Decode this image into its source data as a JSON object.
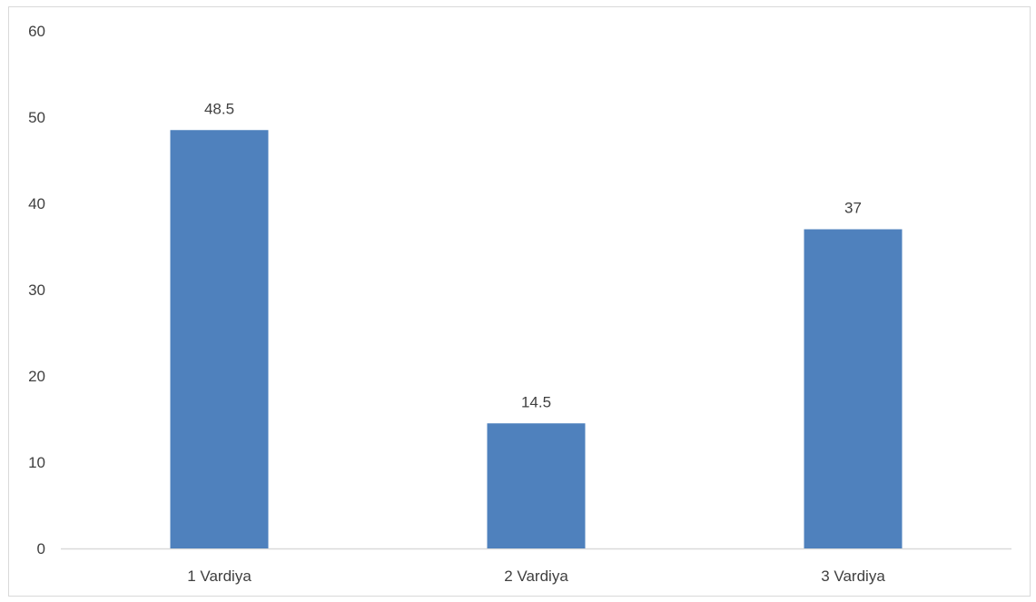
{
  "chart_data": {
    "type": "bar",
    "categories": [
      "1 Vardiya",
      "2 Vardiya",
      "3 Vardiya"
    ],
    "values": [
      48.5,
      14.5,
      37
    ],
    "data_labels": [
      "48.5",
      "14.5",
      "37"
    ],
    "ylim": [
      0,
      60
    ],
    "yticks": [
      0,
      10,
      20,
      30,
      40,
      50,
      60
    ],
    "ytick_labels": [
      "0",
      "10",
      "20",
      "30",
      "40",
      "50",
      "60"
    ],
    "grid": false,
    "legend": "none",
    "bar_color": "#4f81bd",
    "axis_color": "#d9d9d9",
    "text_color": "#404040"
  }
}
